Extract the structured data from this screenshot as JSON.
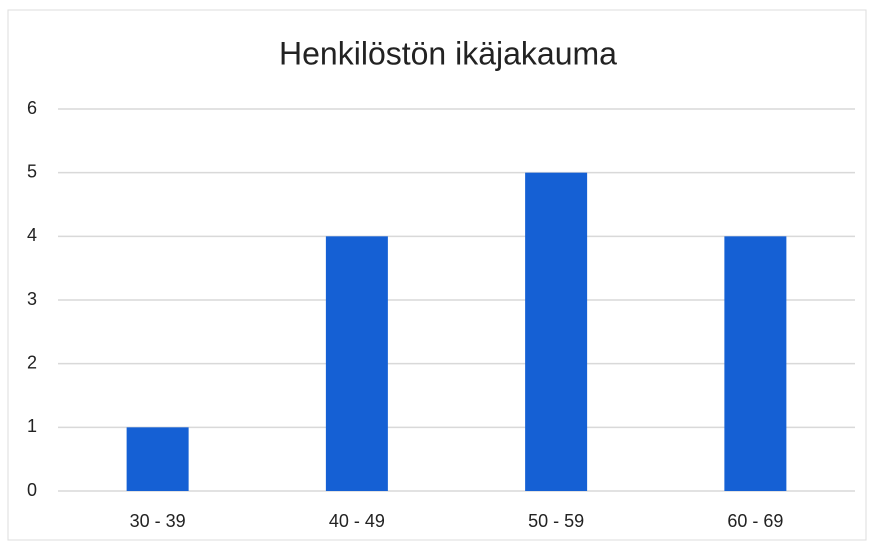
{
  "chart_data": {
    "type": "bar",
    "title": "Henkilöstön ikäjakauma",
    "categories": [
      "30 - 39",
      "40 - 49",
      "50 - 59",
      "60 - 69"
    ],
    "values": [
      1,
      4,
      5,
      4
    ],
    "color": "#1560d4",
    "ylim": [
      0,
      6
    ],
    "yticks": [
      0,
      1,
      2,
      3,
      4,
      5,
      6
    ],
    "grid": true
  }
}
